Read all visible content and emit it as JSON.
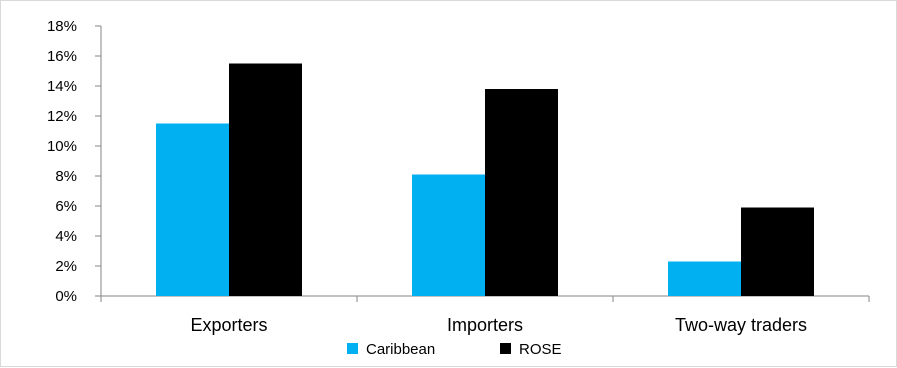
{
  "chart_data": {
    "type": "bar",
    "title": "",
    "xlabel": "",
    "ylabel": "",
    "categories": [
      "Exporters",
      "Importers",
      "Two-way traders"
    ],
    "series": [
      {
        "name": "Caribbean",
        "color": "#00b0f0",
        "values": [
          11.5,
          8.1,
          2.3
        ]
      },
      {
        "name": "ROSE",
        "color": "#000000",
        "values": [
          15.5,
          13.8,
          5.9
        ]
      }
    ],
    "ylim": [
      0,
      18
    ],
    "y_ticks": [
      "0%",
      "2%",
      "4%",
      "6%",
      "8%",
      "10%",
      "12%",
      "14%",
      "16%",
      "18%"
    ],
    "grid": false,
    "legend_position": "bottom"
  }
}
